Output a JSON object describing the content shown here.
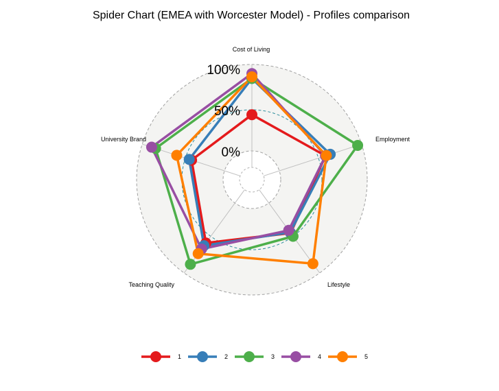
{
  "chart_data": {
    "type": "radar",
    "title": "Spider Chart (EMEA with Worcester Model) - Profiles comparison",
    "axes": [
      "Cost of Living",
      "Employment",
      "Lifestyle",
      "Teaching Quality",
      "University Brand"
    ],
    "grid_labels": [
      "0%",
      "50%",
      "100%"
    ],
    "range": [
      -0.2,
      1.05
    ],
    "legend_position": "bottom",
    "series": [
      {
        "name": "1",
        "color": "#e41a1c",
        "values": [
          0.44,
          0.59,
          0.45,
          0.6,
          0.42
        ]
      },
      {
        "name": "2",
        "color": "#377eb8",
        "values": [
          0.88,
          0.65,
          0.44,
          0.64,
          0.45
        ]
      },
      {
        "name": "3",
        "color": "#4daf4a",
        "values": [
          0.88,
          1.0,
          0.5,
          0.92,
          0.88
        ]
      },
      {
        "name": "4",
        "color": "#984ea3",
        "values": [
          0.94,
          0.59,
          0.41,
          0.69,
          0.93
        ]
      },
      {
        "name": "5",
        "color": "#ff7f00",
        "values": [
          0.9,
          0.6,
          0.91,
          0.76,
          0.61
        ]
      }
    ]
  }
}
